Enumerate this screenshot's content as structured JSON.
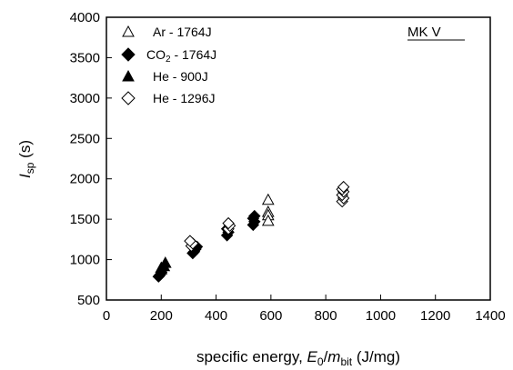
{
  "chart_data": {
    "type": "scatter",
    "title": "",
    "tag": "MK V",
    "xlabel": {
      "prefix": "specific energy, ",
      "E": "E",
      "E_sub": "0",
      "slash": "/",
      "m": "m",
      "m_sub": "bit",
      "unit": " (J/mg)"
    },
    "ylabel": {
      "I": "I",
      "sub": "sp",
      "unit": " (s)"
    },
    "xlim": [
      0,
      1400
    ],
    "ylim": [
      500,
      4000
    ],
    "xticks": [
      0,
      200,
      400,
      600,
      800,
      1000,
      1200,
      1400
    ],
    "yticks": [
      500,
      1000,
      1500,
      2000,
      2500,
      3000,
      3500,
      4000
    ],
    "xtick_labels": [
      "0",
      "200",
      "400",
      "600",
      "800",
      "1000",
      "1200",
      "1400"
    ],
    "ytick_labels": [
      "500",
      "1000",
      "1500",
      "2000",
      "2500",
      "3000",
      "3500",
      "4000"
    ],
    "grid": false,
    "legend_position": "top-left",
    "series": [
      {
        "name": "Ar   - 1764J",
        "legend": {
          "gas": "Ar",
          "sub": "",
          "energy": "   - 1764J"
        },
        "marker": "triangle-open",
        "points": [
          [
            590,
            1740
          ],
          [
            590,
            1590
          ],
          [
            590,
            1550
          ],
          [
            590,
            1480
          ]
        ]
      },
      {
        "name": "CO2 - 1764J",
        "legend": {
          "gas": "CO",
          "sub": "2",
          "energy": " - 1764J"
        },
        "marker": "diamond-filled",
        "points": [
          [
            190,
            790
          ],
          [
            195,
            810
          ],
          [
            200,
            840
          ],
          [
            315,
            1080
          ],
          [
            320,
            1100
          ],
          [
            325,
            1130
          ],
          [
            330,
            1160
          ],
          [
            440,
            1300
          ],
          [
            445,
            1340
          ],
          [
            440,
            1380
          ],
          [
            535,
            1430
          ],
          [
            540,
            1470
          ],
          [
            535,
            1510
          ],
          [
            540,
            1540
          ]
        ]
      },
      {
        "name": "He  -  900J",
        "legend": {
          "gas": "He",
          "sub": "",
          "energy": "  -   900J"
        },
        "marker": "triangle-filled",
        "points": [
          [
            200,
            880
          ],
          [
            210,
            920
          ],
          [
            215,
            960
          ],
          [
            200,
            900
          ]
        ]
      },
      {
        "name": "He  - 1296J",
        "legend": {
          "gas": "He",
          "sub": "",
          "energy": "  - 1296J"
        },
        "marker": "diamond-open",
        "points": [
          [
            310,
            1170
          ],
          [
            315,
            1200
          ],
          [
            305,
            1230
          ],
          [
            445,
            1380
          ],
          [
            450,
            1420
          ],
          [
            445,
            1450
          ],
          [
            860,
            1720
          ],
          [
            865,
            1760
          ],
          [
            860,
            1800
          ],
          [
            865,
            1840
          ],
          [
            860,
            1870
          ],
          [
            865,
            1900
          ]
        ]
      }
    ]
  }
}
